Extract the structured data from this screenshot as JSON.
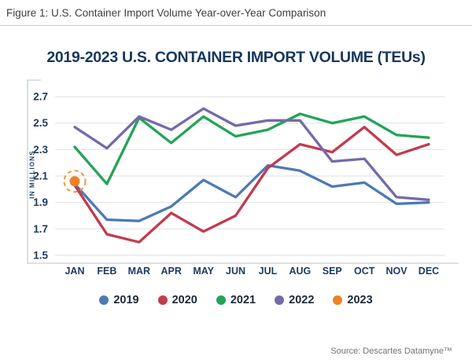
{
  "figure": {
    "caption": "Figure 1: U.S. Container Import Volume Year-over-Year Comparison",
    "source": "Source: Descartes Datamyne™"
  },
  "chart_data": {
    "type": "line",
    "title": "2019-2023 U.S. CONTAINER IMPORT VOLUME (TEUs)",
    "ylabel": "IN MILLIONS",
    "xlabel": "",
    "categories": [
      "JAN",
      "FEB",
      "MAR",
      "APR",
      "MAY",
      "JUN",
      "JUL",
      "AUG",
      "SEP",
      "OCT",
      "NOV",
      "DEC"
    ],
    "yticks": [
      2.7,
      2.5,
      2.3,
      2.1,
      1.9,
      1.7,
      1.5
    ],
    "ylim": [
      1.5,
      2.7
    ],
    "grid": "horizontal",
    "legend_position": "bottom",
    "series": [
      {
        "name": "2019",
        "color": "#4d7ab5",
        "values": [
          2.04,
          1.77,
          1.76,
          1.87,
          2.07,
          1.94,
          2.18,
          2.14,
          2.02,
          2.05,
          1.89,
          1.9
        ]
      },
      {
        "name": "2020",
        "color": "#c23b4c",
        "values": [
          2.03,
          1.66,
          1.6,
          1.82,
          1.68,
          1.8,
          2.16,
          2.34,
          2.28,
          2.47,
          2.26,
          2.34
        ]
      },
      {
        "name": "2021",
        "color": "#22a457",
        "values": [
          2.32,
          2.04,
          2.54,
          2.35,
          2.55,
          2.4,
          2.45,
          2.57,
          2.5,
          2.55,
          2.41,
          2.39
        ]
      },
      {
        "name": "2022",
        "color": "#756aa8",
        "values": [
          2.47,
          2.31,
          2.55,
          2.45,
          2.61,
          2.48,
          2.52,
          2.52,
          2.21,
          2.23,
          1.94,
          1.92
        ]
      },
      {
        "name": "2023",
        "color": "#ee8122",
        "values": [
          2.06
        ]
      }
    ],
    "highlight": {
      "series": "2023",
      "month": "JAN",
      "value": 2.06,
      "style": "dashed-orange-circle",
      "ring_color": "#eb9a3c"
    }
  },
  "style": {
    "title_navy": "#16375e",
    "axis_text_navy": "#1d3a5f",
    "grid_color": "#e4e4e4",
    "axis_frame_color": "#c6cfda",
    "caption_gray": "#3f3f3f",
    "source_gray": "#737373"
  }
}
